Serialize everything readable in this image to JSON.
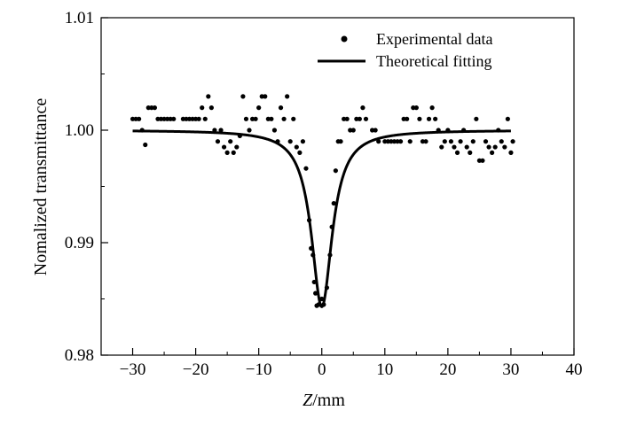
{
  "chart_data": {
    "type": "scatter",
    "title": "",
    "xlabel_italic": "Z",
    "xlabel_rest": "/mm",
    "ylabel": "Nomalized transmittance",
    "xlim": [
      -35,
      40
    ],
    "ylim": [
      0.98,
      1.01
    ],
    "x_ticks": [
      -30,
      -20,
      -10,
      0,
      10,
      20,
      30,
      40
    ],
    "x_tick_labels": [
      "−30",
      "−20",
      "−10",
      "0",
      "10",
      "20",
      "30",
      "40"
    ],
    "y_ticks": [
      0.98,
      0.99,
      1.0,
      1.01
    ],
    "y_tick_labels": [
      "0.98",
      "0.99",
      "1.00",
      "1.01"
    ],
    "legend_position": "top-right",
    "grid": false,
    "series": [
      {
        "name": "Experimental data",
        "kind": "scatter",
        "color": "#000000",
        "points": [
          [
            -30,
            1.001
          ],
          [
            -29.5,
            1.001
          ],
          [
            -29,
            1.001
          ],
          [
            -28.5,
            1.0
          ],
          [
            -28,
            0.9987
          ],
          [
            -27.5,
            1.002
          ],
          [
            -27,
            1.002
          ],
          [
            -26.5,
            1.002
          ],
          [
            -26,
            1.001
          ],
          [
            -25.5,
            1.001
          ],
          [
            -25,
            1.001
          ],
          [
            -24.5,
            1.001
          ],
          [
            -24,
            1.001
          ],
          [
            -23.5,
            1.001
          ],
          [
            -22,
            1.001
          ],
          [
            -21.5,
            1.001
          ],
          [
            -21,
            1.001
          ],
          [
            -20.5,
            1.001
          ],
          [
            -20,
            1.001
          ],
          [
            -19.5,
            1.001
          ],
          [
            -19,
            1.002
          ],
          [
            -18.5,
            1.001
          ],
          [
            -18,
            1.003
          ],
          [
            -17.5,
            1.002
          ],
          [
            -17,
            1.0
          ],
          [
            -16.5,
            0.999
          ],
          [
            -16,
            1.0
          ],
          [
            -15.5,
            0.9985
          ],
          [
            -15,
            0.998
          ],
          [
            -14.5,
            0.999
          ],
          [
            -14,
            0.998
          ],
          [
            -13.5,
            0.9985
          ],
          [
            -13,
            0.9995
          ],
          [
            -12.5,
            1.003
          ],
          [
            -12,
            1.001
          ],
          [
            -11.5,
            1.0
          ],
          [
            -11,
            1.001
          ],
          [
            -10.5,
            1.001
          ],
          [
            -10,
            1.002
          ],
          [
            -9.5,
            1.003
          ],
          [
            -9,
            1.003
          ],
          [
            -8.5,
            1.001
          ],
          [
            -8,
            1.001
          ],
          [
            -7.5,
            1.0
          ],
          [
            -7,
            0.999
          ],
          [
            -6.5,
            1.002
          ],
          [
            -6,
            1.001
          ],
          [
            -5.5,
            1.003
          ],
          [
            -5,
            0.999
          ],
          [
            -4.5,
            1.001
          ],
          [
            -4,
            0.9985
          ],
          [
            -3.5,
            0.998
          ],
          [
            -3,
            0.999
          ],
          [
            -2.5,
            0.9966
          ],
          [
            -2,
            0.992
          ],
          [
            -1.7,
            0.9895
          ],
          [
            -1.4,
            0.9889
          ],
          [
            -1.2,
            0.9865
          ],
          [
            -1.0,
            0.9855
          ],
          [
            -0.8,
            0.9844
          ],
          [
            -0.5,
            0.9845
          ],
          [
            0,
            0.985
          ],
          [
            0.3,
            0.9845
          ],
          [
            0.8,
            0.986
          ],
          [
            1.3,
            0.9889
          ],
          [
            1.6,
            0.9914
          ],
          [
            1.9,
            0.9935
          ],
          [
            2.2,
            0.9964
          ],
          [
            2.6,
            0.999
          ],
          [
            3,
            0.999
          ],
          [
            3.5,
            1.001
          ],
          [
            4,
            1.001
          ],
          [
            4.5,
            1.0
          ],
          [
            5,
            1.0
          ],
          [
            5.5,
            1.001
          ],
          [
            6,
            1.001
          ],
          [
            6.5,
            1.002
          ],
          [
            7,
            1.001
          ],
          [
            8,
            1.0
          ],
          [
            8.5,
            1.0
          ],
          [
            9,
            0.999
          ],
          [
            10,
            0.999
          ],
          [
            10.5,
            0.999
          ],
          [
            11,
            0.999
          ],
          [
            11.5,
            0.999
          ],
          [
            12,
            0.999
          ],
          [
            12.5,
            0.999
          ],
          [
            13,
            1.001
          ],
          [
            13.5,
            1.001
          ],
          [
            14,
            0.999
          ],
          [
            14.5,
            1.002
          ],
          [
            15,
            1.002
          ],
          [
            15.5,
            1.001
          ],
          [
            16,
            0.999
          ],
          [
            16.5,
            0.999
          ],
          [
            17,
            1.001
          ],
          [
            17.5,
            1.002
          ],
          [
            18,
            1.001
          ],
          [
            18.5,
            1.0
          ],
          [
            19,
            0.9985
          ],
          [
            19.5,
            0.999
          ],
          [
            20,
            1.0
          ],
          [
            20.5,
            0.999
          ],
          [
            21,
            0.9985
          ],
          [
            21.5,
            0.998
          ],
          [
            22,
            0.999
          ],
          [
            22.5,
            1.0
          ],
          [
            23,
            0.9985
          ],
          [
            23.5,
            0.998
          ],
          [
            24,
            0.999
          ],
          [
            24.5,
            1.001
          ],
          [
            25,
            0.9973
          ],
          [
            25.5,
            0.9973
          ],
          [
            26,
            0.999
          ],
          [
            26.5,
            0.9985
          ],
          [
            27,
            0.998
          ],
          [
            27.5,
            0.9985
          ],
          [
            28,
            1.0
          ],
          [
            28.5,
            0.999
          ],
          [
            29,
            0.9985
          ],
          [
            29.5,
            1.001
          ],
          [
            30,
            0.998
          ],
          [
            30.3,
            0.999
          ]
        ]
      },
      {
        "name": "Theoretical fitting",
        "kind": "line",
        "color": "#000000",
        "baseline": 1.0,
        "dip_depth": 0.0157,
        "dip_center": 0,
        "rayleigh_length": 2.0,
        "x_range": [
          -30,
          30
        ]
      }
    ]
  }
}
